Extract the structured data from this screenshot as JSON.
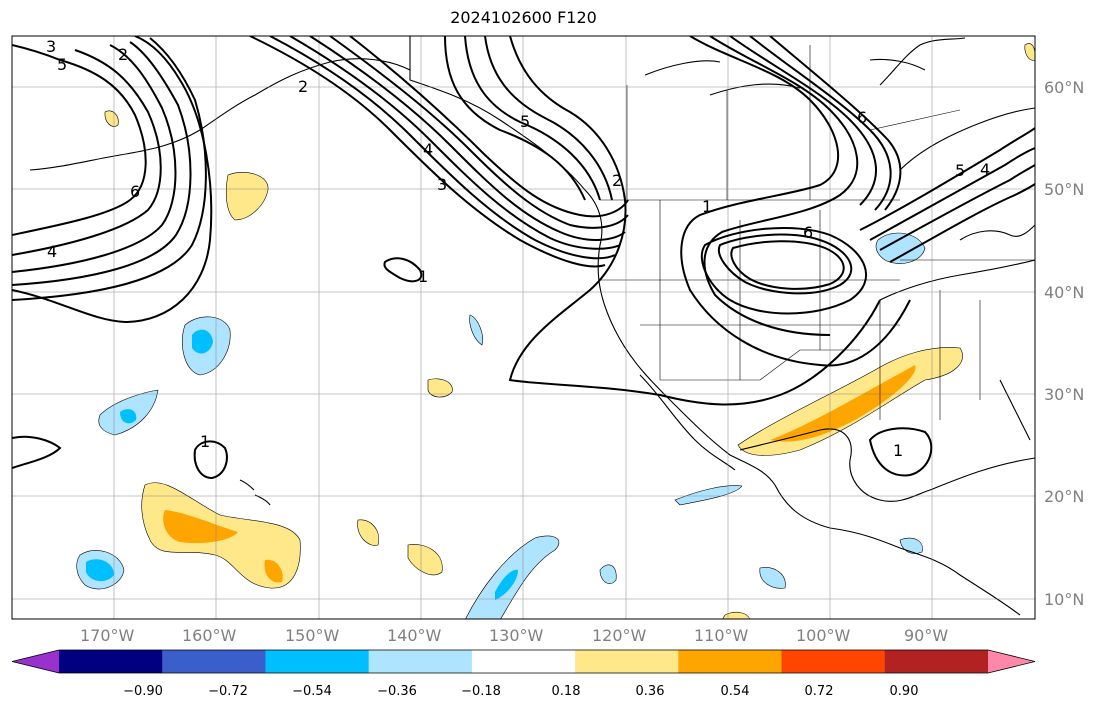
{
  "title": "2024102600 F120",
  "map": {
    "lon_labels": [
      "170°W",
      "160°W",
      "150°W",
      "140°W",
      "130°W",
      "120°W",
      "110°W",
      "100°W",
      "90°W"
    ],
    "lat_labels": [
      "60°N",
      "50°N",
      "40°N",
      "30°N",
      "20°N",
      "10°N"
    ],
    "contour_labels": [
      "3",
      "5",
      "2",
      "6",
      "4",
      "1",
      "2",
      "3",
      "4",
      "5",
      "2",
      "1",
      "6",
      "6",
      "5",
      "4",
      "1",
      "1"
    ]
  },
  "colorbar": {
    "ticks": [
      "−0.90",
      "−0.72",
      "−0.54",
      "−0.36",
      "−0.18",
      "0.18",
      "0.36",
      "0.54",
      "0.72",
      "0.90"
    ],
    "colors": [
      "#9932cc",
      "#000080",
      "#3a5fcd",
      "#00bfff",
      "#aee4ff",
      "#ffffff",
      "#ffe88a",
      "#ffa500",
      "#ff4500",
      "#b22222",
      "#ff88aa"
    ]
  }
}
